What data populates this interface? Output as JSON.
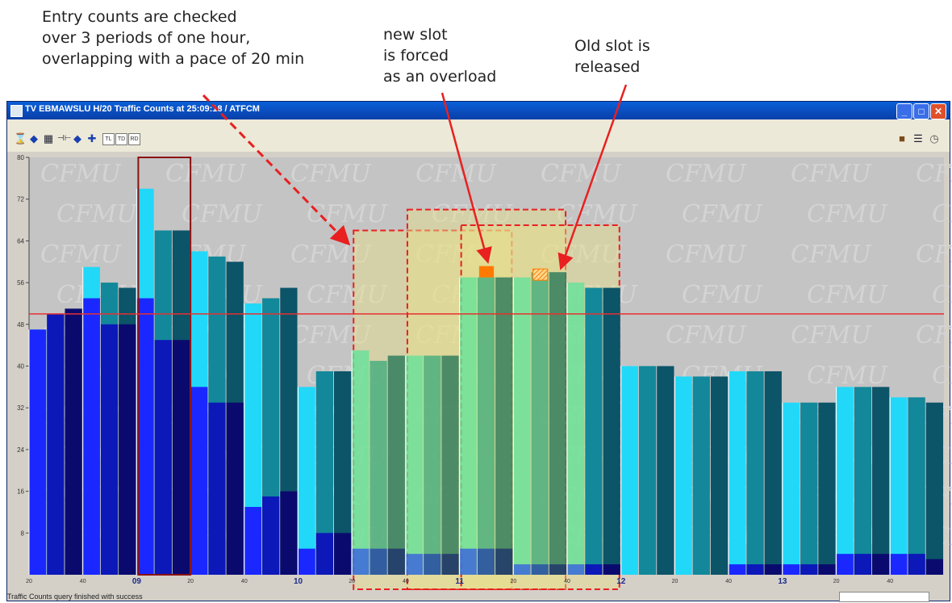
{
  "annotations": {
    "left": "Entry counts are checked\nover 3 periods of one hour,\noverlapping with a pace of 20 min",
    "middle": "new slot\nis forced\nas an overload",
    "right": "Old slot is\nreleased"
  },
  "window": {
    "title": "TV EBMAWSLU H/20 Traffic Counts at 25:09:18 / ATFCM",
    "status": "Traffic Counts query finished with success"
  },
  "toolbar": {
    "left_icons": [
      "hourglass-icon",
      "diamond-icon",
      "grid-icon",
      "split-icon",
      "diamond-icon",
      "crosshair-icon"
    ],
    "left_buttons": [
      "TL",
      "TD",
      "RD"
    ],
    "right_icons": [
      "briefcase-icon",
      "list-icon",
      "clock-icon"
    ]
  },
  "watermark": "CFMU",
  "colors": {
    "bar_light": "#22d8f8",
    "bar_mid": "#12889a",
    "bar_dark": "#0c5468",
    "regulated_light": "#66e29a",
    "regulated_mid": "#46ad7e",
    "regulated_dark": "#2c7a5a",
    "flow_blue": "#1a28ff",
    "flow_navy": "#0a0a6e",
    "capacity_line": "#e83030",
    "annotation_arrow": "#e82020",
    "forced_slot": "#ff7a00",
    "period_box_fill": "#e8e088"
  },
  "chart_data": {
    "type": "bar",
    "title": "",
    "xlabel": "",
    "ylabel": "",
    "ylim": [
      0,
      80
    ],
    "yticks": [
      8,
      16,
      24,
      32,
      40,
      48,
      56,
      64,
      72,
      80
    ],
    "capacity": 50,
    "x_hour_labels": [
      "09",
      "10",
      "11",
      "12",
      "13"
    ],
    "x_minute_labels": [
      "20",
      "40",
      "20",
      "40",
      "20",
      "40",
      "20",
      "40",
      "20",
      "40",
      "20",
      "40"
    ],
    "bars": [
      {
        "total": 47,
        "dark": 47,
        "regulated": false
      },
      {
        "total": 50,
        "dark": 50,
        "regulated": false
      },
      {
        "total": 51,
        "dark": 51,
        "regulated": false
      },
      {
        "total": 59,
        "dark": 53,
        "regulated": false
      },
      {
        "total": 56,
        "dark": 48,
        "regulated": false
      },
      {
        "total": 55,
        "dark": 48,
        "regulated": false
      },
      {
        "total": 74,
        "dark": 53,
        "regulated": false
      },
      {
        "total": 66,
        "dark": 45,
        "regulated": false
      },
      {
        "total": 66,
        "dark": 45,
        "regulated": false
      },
      {
        "total": 62,
        "dark": 36,
        "regulated": false
      },
      {
        "total": 61,
        "dark": 33,
        "regulated": false
      },
      {
        "total": 60,
        "dark": 33,
        "regulated": false
      },
      {
        "total": 52,
        "dark": 13,
        "regulated": false
      },
      {
        "total": 53,
        "dark": 15,
        "regulated": false
      },
      {
        "total": 55,
        "dark": 16,
        "regulated": false
      },
      {
        "total": 36,
        "dark": 5,
        "regulated": false
      },
      {
        "total": 39,
        "dark": 8,
        "regulated": false
      },
      {
        "total": 39,
        "dark": 8,
        "regulated": false
      },
      {
        "total": 43,
        "dark": 5,
        "regulated": true
      },
      {
        "total": 41,
        "dark": 5,
        "regulated": true
      },
      {
        "total": 42,
        "dark": 5,
        "regulated": true
      },
      {
        "total": 42,
        "dark": 4,
        "regulated": true
      },
      {
        "total": 42,
        "dark": 4,
        "regulated": true
      },
      {
        "total": 42,
        "dark": 4,
        "regulated": true
      },
      {
        "total": 57,
        "dark": 5,
        "regulated": true
      },
      {
        "total": 57,
        "dark": 5,
        "regulated": true
      },
      {
        "total": 57,
        "dark": 5,
        "regulated": true
      },
      {
        "total": 57,
        "dark": 2,
        "regulated": true
      },
      {
        "total": 58,
        "dark": 2,
        "regulated": true
      },
      {
        "total": 58,
        "dark": 2,
        "regulated": true
      },
      {
        "total": 56,
        "dark": 2,
        "regulated": true
      },
      {
        "total": 55,
        "dark": 2,
        "regulated": false
      },
      {
        "total": 55,
        "dark": 2,
        "regulated": false
      },
      {
        "total": 40,
        "dark": 0,
        "regulated": false
      },
      {
        "total": 40,
        "dark": 0,
        "regulated": false
      },
      {
        "total": 40,
        "dark": 0,
        "regulated": false
      },
      {
        "total": 38,
        "dark": 0,
        "regulated": false
      },
      {
        "total": 38,
        "dark": 0,
        "regulated": false
      },
      {
        "total": 38,
        "dark": 0,
        "regulated": false
      },
      {
        "total": 39,
        "dark": 2,
        "regulated": false
      },
      {
        "total": 39,
        "dark": 2,
        "regulated": false
      },
      {
        "total": 39,
        "dark": 2,
        "regulated": false
      },
      {
        "total": 33,
        "dark": 2,
        "regulated": false
      },
      {
        "total": 33,
        "dark": 2,
        "regulated": false
      },
      {
        "total": 33,
        "dark": 2,
        "regulated": false
      },
      {
        "total": 36,
        "dark": 4,
        "regulated": false
      },
      {
        "total": 36,
        "dark": 4,
        "regulated": false
      },
      {
        "total": 36,
        "dark": 4,
        "regulated": false
      },
      {
        "total": 34,
        "dark": 4,
        "regulated": false
      },
      {
        "total": 34,
        "dark": 4,
        "regulated": false
      },
      {
        "total": 33,
        "dark": 3,
        "regulated": false
      }
    ],
    "forced_slot_bar_index": 25,
    "released_slot_bar_index": 28,
    "highlight_bar_index": 7
  }
}
